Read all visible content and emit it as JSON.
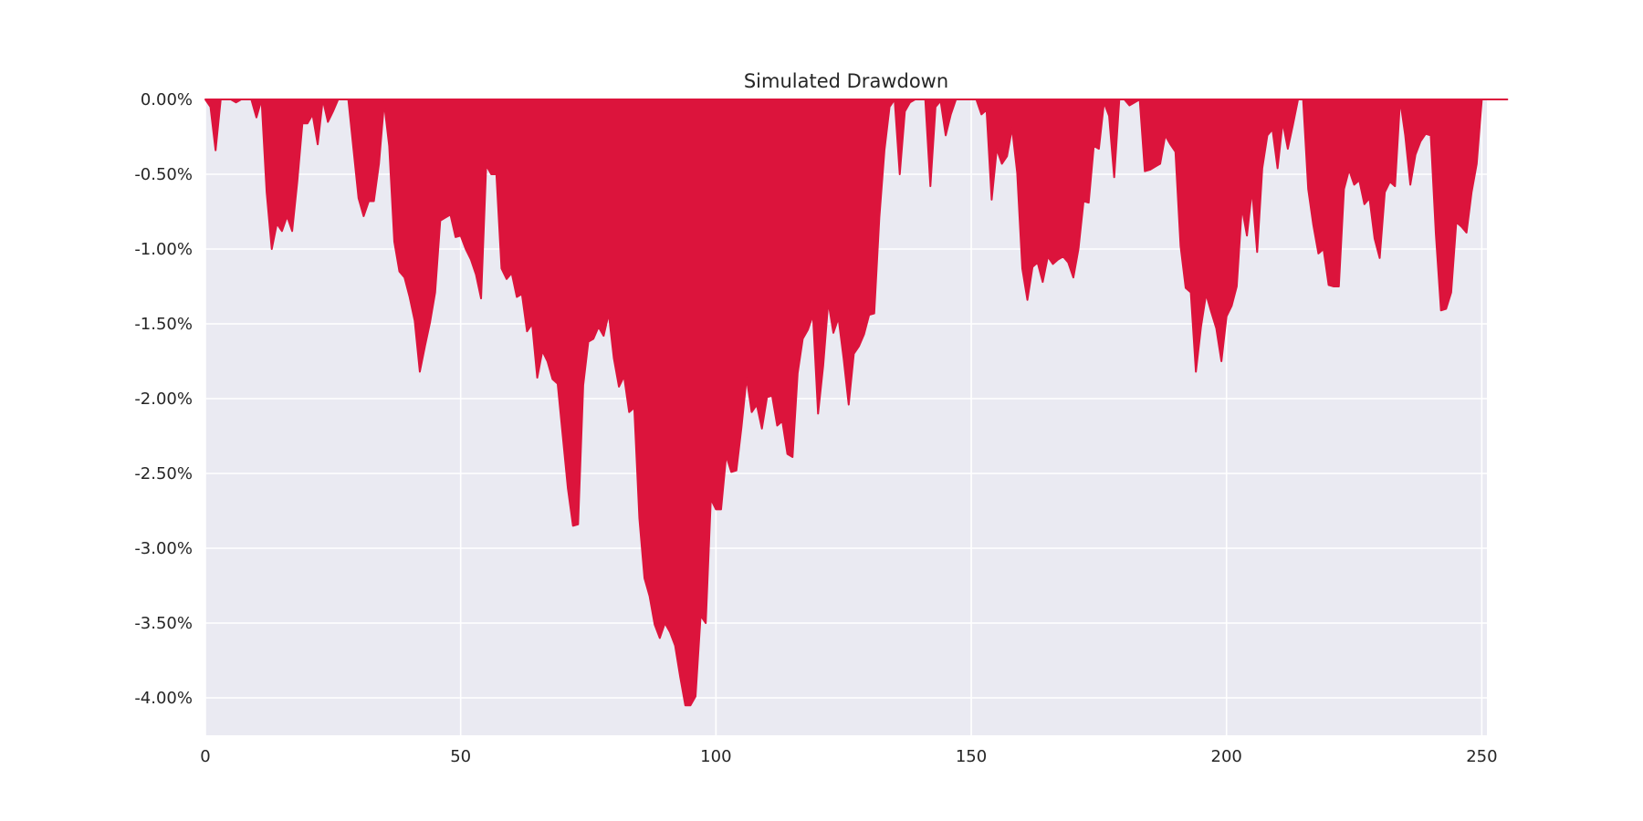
{
  "chart_data": {
    "type": "area",
    "title": "Simulated Drawdown",
    "xlabel": "",
    "ylabel": "",
    "xlim": [
      0,
      251
    ],
    "ylim": [
      -4.25,
      0
    ],
    "x_ticks": [
      0,
      50,
      100,
      150,
      200,
      250
    ],
    "x_tick_labels": [
      "0",
      "50",
      "100",
      "150",
      "200",
      "250"
    ],
    "y_ticks": [
      0,
      -0.5,
      -1,
      -1.5,
      -2,
      -2.5,
      -3,
      -3.5,
      -4
    ],
    "y_tick_labels": [
      "0.00%",
      "-0.50%",
      "-1.00%",
      "-1.50%",
      "-2.00%",
      "-2.50%",
      "-3.00%",
      "-3.50%",
      "-4.00%"
    ],
    "grid": true,
    "colors": {
      "area": "#dc143c",
      "axes_bg": "#eaeaf2",
      "grid": "#ffffff",
      "text": "#262626"
    },
    "series": [
      {
        "values": [
          0,
          -0.05,
          -0.34,
          0,
          0,
          0,
          -0.02,
          0,
          0,
          0,
          -0.12,
          0,
          -0.62,
          -1.0,
          -0.83,
          -0.88,
          -0.78,
          -0.88,
          -0.55,
          -0.16,
          -0.16,
          -0.1,
          -0.3,
          0,
          -0.15,
          -0.08,
          0,
          0,
          0,
          -0.33,
          -0.66,
          -0.78,
          -0.68,
          -0.68,
          -0.43,
          -0.02,
          -0.31,
          -0.95,
          -1.15,
          -1.19,
          -1.32,
          -1.48,
          -1.82,
          -1.65,
          -1.49,
          -1.29,
          -0.81,
          -0.79,
          -0.77,
          -0.92,
          -0.91,
          -1.0,
          -1.07,
          -1.17,
          -1.33,
          -0.44,
          -0.5,
          -0.5,
          -1.13,
          -1.2,
          -1.16,
          -1.32,
          -1.3,
          -1.55,
          -1.5,
          -1.86,
          -1.68,
          -1.75,
          -1.87,
          -1.9,
          -2.25,
          -2.6,
          -2.85,
          -2.84,
          -1.91,
          -1.62,
          -1.6,
          -1.52,
          -1.58,
          -1.43,
          -1.73,
          -1.92,
          -1.85,
          -2.09,
          -2.06,
          -2.8,
          -3.2,
          -3.32,
          -3.51,
          -3.6,
          -3.5,
          -3.56,
          -3.65,
          -3.86,
          -4.05,
          -4.05,
          -3.99,
          -3.45,
          -3.5,
          -2.67,
          -2.74,
          -2.74,
          -2.38,
          -2.49,
          -2.48,
          -2.19,
          -1.86,
          -2.09,
          -2.04,
          -2.2,
          -1.99,
          -1.98,
          -2.18,
          -2.15,
          -2.37,
          -2.39,
          -1.83,
          -1.6,
          -1.54,
          -1.44,
          -2.1,
          -1.78,
          -1.35,
          -1.56,
          -1.46,
          -1.73,
          -2.04,
          -1.7,
          -1.65,
          -1.57,
          -1.44,
          -1.43,
          -0.79,
          -0.34,
          -0.05,
          0,
          -0.5,
          -0.08,
          -0.02,
          0,
          0,
          0,
          -0.58,
          -0.05,
          -0.01,
          -0.24,
          -0.1,
          0,
          0,
          0,
          0,
          0,
          -0.1,
          -0.07,
          -0.67,
          -0.33,
          -0.43,
          -0.38,
          -0.19,
          -0.49,
          -1.13,
          -1.34,
          -1.12,
          -1.09,
          -1.22,
          -1.05,
          -1.1,
          -1.07,
          -1.05,
          -1.09,
          -1.19,
          -1.0,
          -0.68,
          -0.69,
          -0.31,
          -0.33,
          -0.02,
          -0.11,
          -0.52,
          0,
          0,
          -0.04,
          -0.02,
          0,
          -0.48,
          -0.47,
          -0.45,
          -0.43,
          -0.24,
          -0.3,
          -0.35,
          -0.98,
          -1.26,
          -1.29,
          -1.82,
          -1.52,
          -1.3,
          -1.42,
          -1.53,
          -1.75,
          -1.45,
          -1.38,
          -1.25,
          -0.72,
          -0.91,
          -0.6,
          -1.02,
          -0.46,
          -0.24,
          -0.2,
          -0.46,
          -0.15,
          -0.33,
          -0.17,
          0,
          0,
          -0.6,
          -0.84,
          -1.03,
          -1.0,
          -1.24,
          -1.25,
          -1.25,
          -0.6,
          -0.47,
          -0.57,
          -0.54,
          -0.7,
          -0.66,
          -0.93,
          -1.06,
          -0.62,
          -0.55,
          -0.58,
          0,
          -0.24,
          -0.57,
          -0.37,
          -0.28,
          -0.23,
          -0.24,
          -0.9,
          -1.41,
          -1.4,
          -1.29,
          -0.82,
          -0.85,
          -0.89,
          -0.62,
          -0.43,
          0,
          0,
          0,
          0,
          0,
          0
        ]
      }
    ]
  }
}
